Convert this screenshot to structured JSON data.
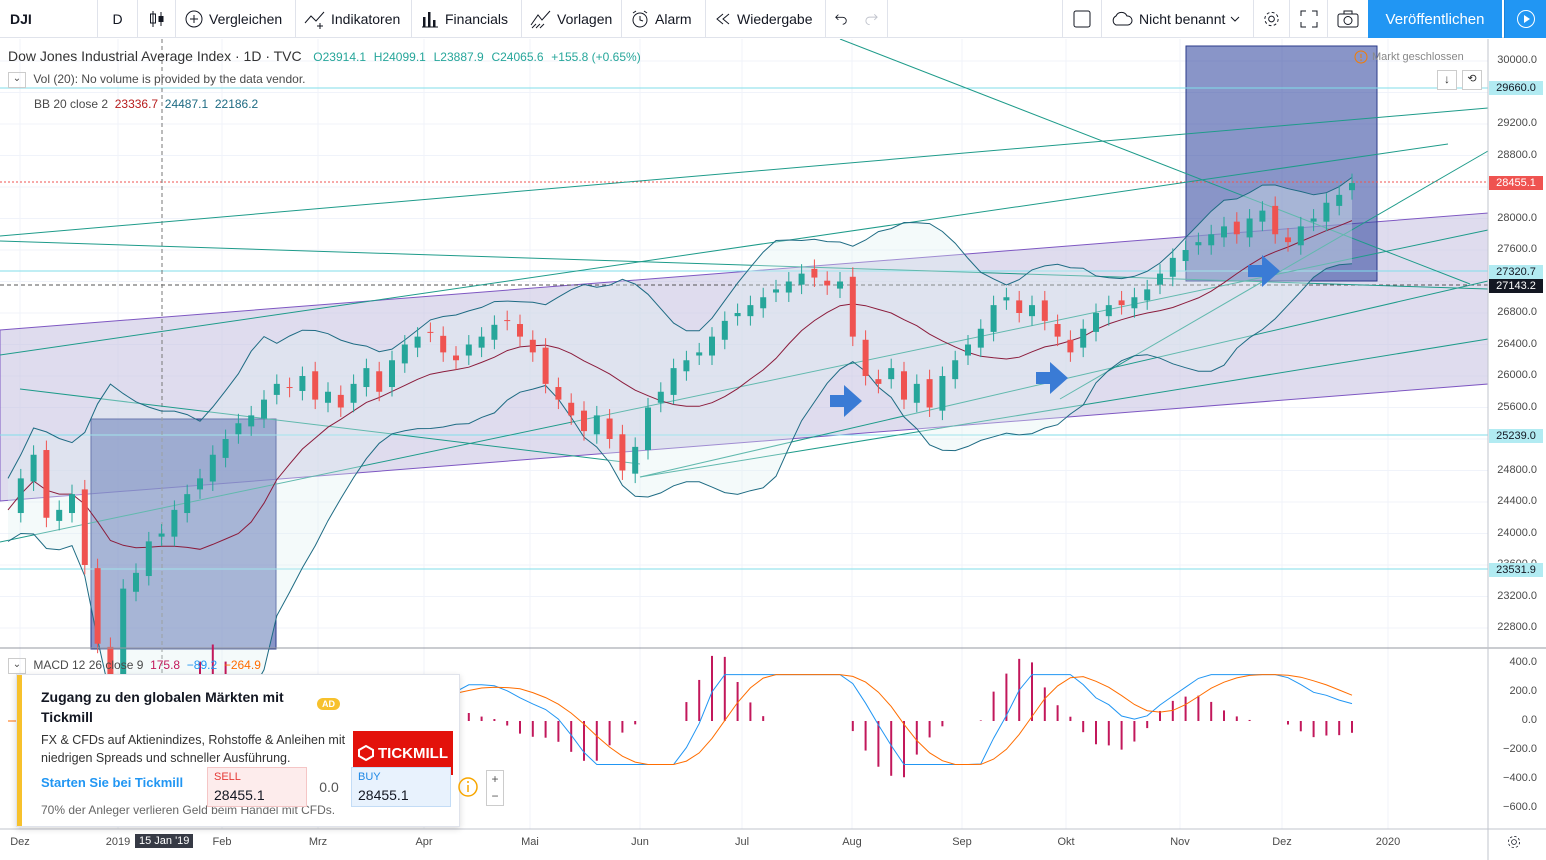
{
  "toolbar": {
    "symbol": "DJI",
    "interval": "D",
    "compare_label": "Vergleichen",
    "indicators_label": "Indikatoren",
    "financials_label": "Financials",
    "templates_label": "Vorlagen",
    "alert_label": "Alarm",
    "replay_label": "Wiedergabe",
    "layout_name": "Nicht benannt",
    "publish_label": "Veröffentlichen"
  },
  "legend": {
    "title": "Dow Jones Industrial Average Index · 1D · TVC",
    "open": "O23914.1",
    "high": "H24099.1",
    "low": "L23887.9",
    "close": "C24065.6",
    "change": "+155.8 (+0.65%)",
    "volume_text": "Vol (20): No volume is provided by the data vendor.",
    "bb_name": "BB 20 close 2",
    "bb_mid": "23336.7",
    "bb_upper": "24487.1",
    "bb_lower": "22186.2",
    "macd_name": "MACD 12 26 close 9",
    "macd_hist": "175.8",
    "macd_line": "−89.2",
    "macd_signal": "−264.9",
    "market_status": "Markt geschlossen"
  },
  "price_axis": {
    "labels": [
      "30000.0",
      "29600.0",
      "29200.0",
      "28800.0",
      "28400.0",
      "28000.0",
      "27600.0",
      "27200.0",
      "26800.0",
      "26400.0",
      "26000.0",
      "25600.0",
      "25200.0",
      "24800.0",
      "24400.0",
      "24000.0",
      "23600.0",
      "23200.0",
      "22800.0"
    ],
    "tags": [
      {
        "value": "29660.0",
        "color": "#b2ebf2"
      },
      {
        "value": "28455.1",
        "color": "#ef5350"
      },
      {
        "value": "27320.7",
        "color": "#b2ebf2"
      },
      {
        "value": "27143.2",
        "color": "#131722"
      },
      {
        "value": "25239.0",
        "color": "#b2ebf2"
      },
      {
        "value": "23531.9",
        "color": "#b2ebf2"
      }
    ]
  },
  "macd_axis": {
    "labels": [
      "400.0",
      "200.0",
      "0.0",
      "−200.0",
      "−400.0",
      "−600.0"
    ]
  },
  "time_axis": {
    "labels": [
      "Dez",
      "2019",
      "Feb",
      "Mrz",
      "Apr",
      "Mai",
      "Jun",
      "Jul",
      "Aug",
      "Sep",
      "Okt",
      "Nov",
      "Dez",
      "2020"
    ],
    "crosshair_label": "15 Jan '19"
  },
  "ad": {
    "title": "Zugang zu den globalen Märkten mit Tickmill",
    "badge": "AD",
    "description": "FX & CFDs auf Aktienindizes, Rohstoffe & Anleihen mit niedrigen Spreads und schneller Ausführung.",
    "link": "Starten Sie bei Tickmill",
    "brand": "TICKMILL",
    "disclaimer": "70% der Anleger verlieren Geld beim Handel mit CFDs.",
    "sell_label": "SELL",
    "sell_price": "28455.1",
    "spread": "0.0",
    "buy_label": "BUY",
    "buy_price": "28455.1",
    "plus": "+",
    "minus": "−"
  },
  "chart_data": {
    "type": "candlestick",
    "symbol": "DJI",
    "ylim": [
      22600,
      30300
    ],
    "close_series": [
      24300,
      24700,
      25000,
      24200,
      24300,
      24500,
      23600,
      22600,
      22000,
      23300,
      23500,
      23900,
      24000,
      24300,
      24500,
      24700,
      25000,
      25200,
      25400,
      25500,
      25700,
      25900,
      25850,
      26000,
      25700,
      25800,
      25600,
      25900,
      26100,
      25800,
      26200,
      26400,
      26500,
      26550,
      26300,
      26200,
      26400,
      26500,
      26650,
      26700,
      26500,
      26300,
      25900,
      25700,
      25500,
      25300,
      25500,
      25200,
      24800,
      25100,
      25600,
      25800,
      26100,
      26200,
      26300,
      26500,
      26700,
      26800,
      26900,
      27000,
      27100,
      27200,
      27300,
      27250,
      27150,
      27200,
      26500,
      26000,
      25900,
      26100,
      25700,
      25900,
      25600,
      26000,
      26200,
      26400,
      26600,
      26900,
      27000,
      26800,
      26900,
      26700,
      26500,
      26300,
      26600,
      26800,
      26900,
      26900,
      27000,
      27100,
      27300,
      27500,
      27600,
      27700,
      27800,
      27900,
      27800,
      28000,
      28100,
      27800,
      27700,
      27900,
      28000,
      28200,
      28300,
      28450
    ]
  }
}
